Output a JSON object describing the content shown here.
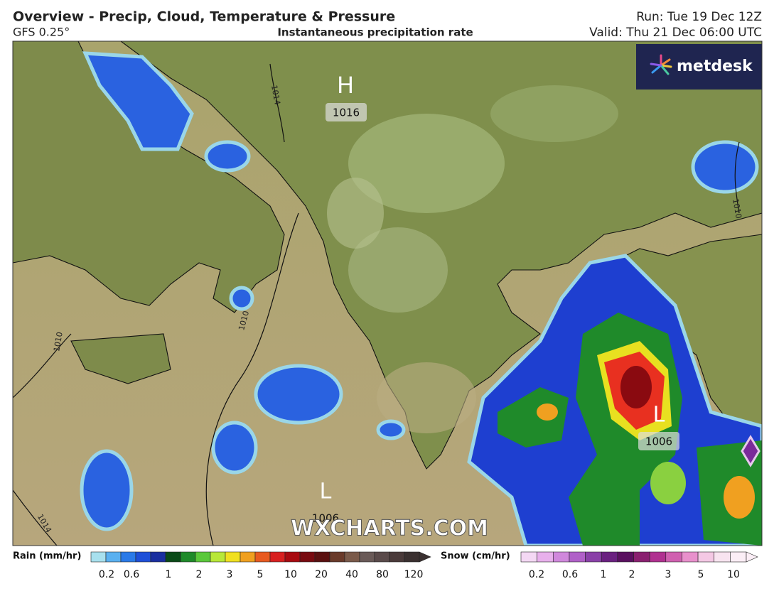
{
  "header": {
    "title": "Overview - Precip, Cloud, Temperature & Pressure",
    "model": "GFS 0.25°",
    "subtitle": "Instantaneous precipitation rate",
    "run": "Run: Tue 19 Dec 12Z",
    "valid": "Valid: Thu 21 Dec 06:00 UTC"
  },
  "logo": "metdesk",
  "map": {
    "pressure_centers": [
      {
        "label": "H",
        "value": 1016
      },
      {
        "label": "L",
        "value": 1006
      },
      {
        "label": "L",
        "value": 1006
      }
    ],
    "isobar_labels": [
      1014,
      1010,
      1010,
      1010,
      1014
    ],
    "watermark": "WXCHARTS.COM"
  },
  "legend": {
    "rain": {
      "title": "Rain (mm/hr)",
      "ticks": [
        0.2,
        0.6,
        1,
        2,
        3,
        5,
        10,
        20,
        40,
        80,
        120
      ]
    },
    "snow": {
      "title": "Snow (cm/hr)",
      "ticks": [
        0.2,
        0.6,
        1,
        2,
        3,
        5,
        10
      ]
    }
  }
}
